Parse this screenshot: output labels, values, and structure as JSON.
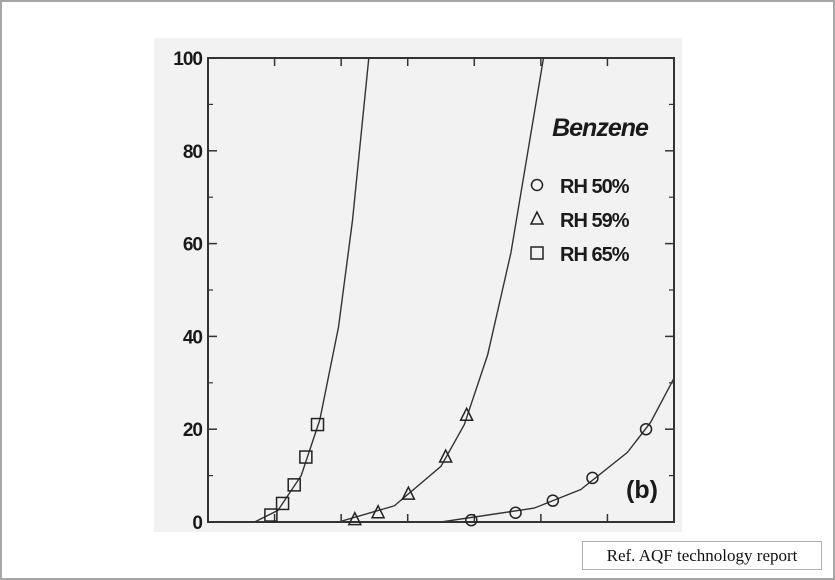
{
  "chart_data": {
    "type": "scatter",
    "title": "",
    "xlabel": "",
    "ylabel": "",
    "ylim": [
      0,
      100
    ],
    "y_ticks": [
      0,
      20,
      40,
      60,
      80,
      100
    ],
    "x_tick_count": 7,
    "grid": false,
    "legend": {
      "title": "Benzene",
      "placement": "top-right"
    },
    "panel_label": "(b)",
    "series": [
      {
        "name": "RH 50%",
        "marker": "circle",
        "points": [
          [
            0.565,
            0.4
          ],
          [
            0.66,
            2
          ],
          [
            0.74,
            4.6
          ],
          [
            0.825,
            9.5
          ],
          [
            0.94,
            20
          ]
        ],
        "fit": [
          [
            0.5,
            0
          ],
          [
            0.7,
            3
          ],
          [
            0.8,
            7
          ],
          [
            0.9,
            15
          ],
          [
            0.95,
            21.5
          ],
          [
            1.0,
            31
          ],
          [
            1.05,
            44
          ],
          [
            1.1,
            62
          ]
        ]
      },
      {
        "name": "RH 59%",
        "marker": "triangle",
        "points": [
          [
            0.315,
            0.5
          ],
          [
            0.365,
            2
          ],
          [
            0.43,
            6
          ],
          [
            0.51,
            14
          ],
          [
            0.555,
            23
          ]
        ],
        "fit": [
          [
            0.28,
            0
          ],
          [
            0.4,
            3.5
          ],
          [
            0.5,
            12
          ],
          [
            0.55,
            21
          ],
          [
            0.6,
            36
          ],
          [
            0.65,
            58
          ],
          [
            0.7,
            88
          ],
          [
            0.72,
            100
          ]
        ]
      },
      {
        "name": "RH 65%",
        "marker": "square",
        "points": [
          [
            0.135,
            1.5
          ],
          [
            0.16,
            4
          ],
          [
            0.185,
            8
          ],
          [
            0.21,
            14
          ],
          [
            0.235,
            21
          ]
        ],
        "fit": [
          [
            0.1,
            0
          ],
          [
            0.15,
            2.5
          ],
          [
            0.2,
            10
          ],
          [
            0.24,
            22
          ],
          [
            0.28,
            42
          ],
          [
            0.31,
            65
          ],
          [
            0.33,
            85
          ],
          [
            0.345,
            100
          ]
        ]
      }
    ]
  },
  "footer": {
    "reference": "Ref. AQF technology report"
  }
}
